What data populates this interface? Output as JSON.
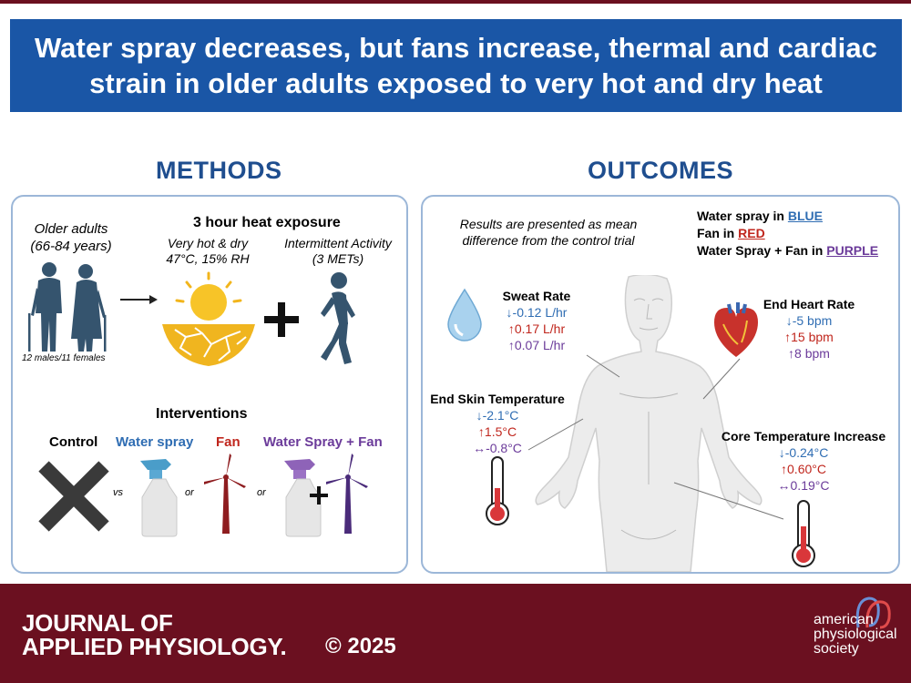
{
  "title": {
    "line1": "Water spray decreases, but fans increase, thermal and cardiac",
    "line2": "strain in older adults exposed to very hot and dry heat"
  },
  "methods": {
    "heading": "METHODS",
    "older_adults": "Older adults",
    "age_range": "(66-84 years)",
    "sample": "12 males/11 females",
    "exposure_title": "3 hour heat exposure",
    "very_hot": "Very hot & dry",
    "conditions": "47°C, 15% RH",
    "activity_title": "Intermittent Activity",
    "activity_mets": "(3 METs)",
    "interventions_title": "Interventions",
    "control": "Control",
    "water_spray": "Water spray",
    "fan": "Fan",
    "combo": "Water Spray + Fan",
    "vs": "vs",
    "or1": "or",
    "or2": "or"
  },
  "outcomes": {
    "heading": "OUTCOMES",
    "note_line1": "Results are presented as mean",
    "note_line2": "difference from the control trial",
    "legend": {
      "water_prefix": "Water spray in ",
      "water_word": "BLUE",
      "fan_prefix": "Fan in ",
      "fan_word": "RED",
      "combo_prefix": "Water Spray + Fan in ",
      "combo_word": "PURPLE"
    },
    "sweat": {
      "label": "Sweat Rate",
      "blue": "↓-0.12 L/hr",
      "red": "↑0.17 L/hr",
      "purple": "↑0.07 L/hr"
    },
    "heart": {
      "label": "End Heart Rate",
      "blue": "↓-5 bpm",
      "red": "↑15 bpm",
      "purple": "↑8 bpm"
    },
    "skin": {
      "label": "End Skin Temperature",
      "blue": "↓-2.1°C",
      "red": "↑1.5°C",
      "purple": "↔-0.8°C"
    },
    "core": {
      "label": "Core Temperature Increase",
      "blue": "↓-0.24°C",
      "red": "↑0.60°C",
      "purple": "↔0.19°C"
    }
  },
  "footer": {
    "journal_line1": "JOURNAL OF",
    "journal_line2": "APPLIED PHYSIOLOGY.",
    "copyright": "© 2025",
    "society_line1": "american",
    "society_line2": "physiological",
    "society_line3": "society"
  },
  "colors": {
    "title_bg": "#1a56a6",
    "footer_bg": "#6b1020",
    "blue": "#2f6db3",
    "red": "#c0261d",
    "purple": "#6b3b9a"
  }
}
